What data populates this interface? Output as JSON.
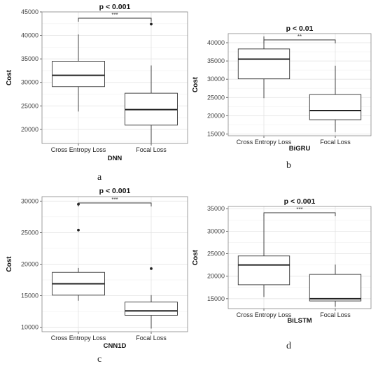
{
  "panel_letters": [
    "a",
    "b",
    "c",
    "d"
  ],
  "chart_data": [
    {
      "type": "box",
      "title": "p < 0.001",
      "significance": "***",
      "xlabel": "DNN",
      "ylabel": "Cost",
      "categories": [
        "Cross Entropy Loss",
        "Focal Loss"
      ],
      "ylim": [
        17000,
        45000
      ],
      "yticks": [
        20000,
        25000,
        30000,
        35000,
        40000,
        45000
      ],
      "grid": true,
      "boxes": [
        {
          "min": 23800,
          "q1": 29100,
          "median": 31500,
          "q3": 34500,
          "max": 40200,
          "outliers": []
        },
        {
          "min": 16800,
          "q1": 20900,
          "median": 24200,
          "q3": 27700,
          "max": 33600,
          "outliers": [
            42400
          ]
        }
      ]
    },
    {
      "type": "box",
      "title": "p < 0.01",
      "significance": "**",
      "xlabel": "BiGRU",
      "ylabel": "Cost",
      "categories": [
        "Cross Entropy Loss",
        "Focal Loss"
      ],
      "ylim": [
        14500,
        42500
      ],
      "yticks": [
        15000,
        20000,
        25000,
        30000,
        35000,
        40000
      ],
      "grid": true,
      "boxes": [
        {
          "min": 24800,
          "q1": 30100,
          "median": 35500,
          "q3": 38300,
          "max": 41700,
          "outliers": []
        },
        {
          "min": 15500,
          "q1": 18900,
          "median": 21400,
          "q3": 25800,
          "max": 33700,
          "outliers": []
        }
      ]
    },
    {
      "type": "box",
      "title": "p < 0.001",
      "significance": "***",
      "xlabel": "CNN1D",
      "ylabel": "Cost",
      "categories": [
        "Cross Entropy Loss",
        "Focal Loss"
      ],
      "ylim": [
        9300,
        30700
      ],
      "yticks": [
        10000,
        15000,
        20000,
        25000,
        30000
      ],
      "grid": true,
      "boxes": [
        {
          "min": 14200,
          "q1": 15100,
          "median": 16900,
          "q3": 18700,
          "max": 19400,
          "outliers": [
            25400,
            29500
          ]
        },
        {
          "min": 9800,
          "q1": 11900,
          "median": 12600,
          "q3": 14000,
          "max": 15100,
          "outliers": [
            19300
          ]
        }
      ]
    },
    {
      "type": "box",
      "title": "p < 0.001",
      "significance": "***",
      "xlabel": "BiLSTM",
      "ylabel": "Cost",
      "categories": [
        "Cross Entropy Loss",
        "Focal Loss"
      ],
      "ylim": [
        12800,
        35500
      ],
      "yticks": [
        15000,
        20000,
        25000,
        30000,
        35000
      ],
      "grid": true,
      "boxes": [
        {
          "min": 15400,
          "q1": 18100,
          "median": 22500,
          "q3": 24500,
          "max": 33700,
          "outliers": []
        },
        {
          "min": 13200,
          "q1": 14500,
          "median": 15000,
          "q3": 20400,
          "max": 22600,
          "outliers": []
        }
      ]
    }
  ]
}
